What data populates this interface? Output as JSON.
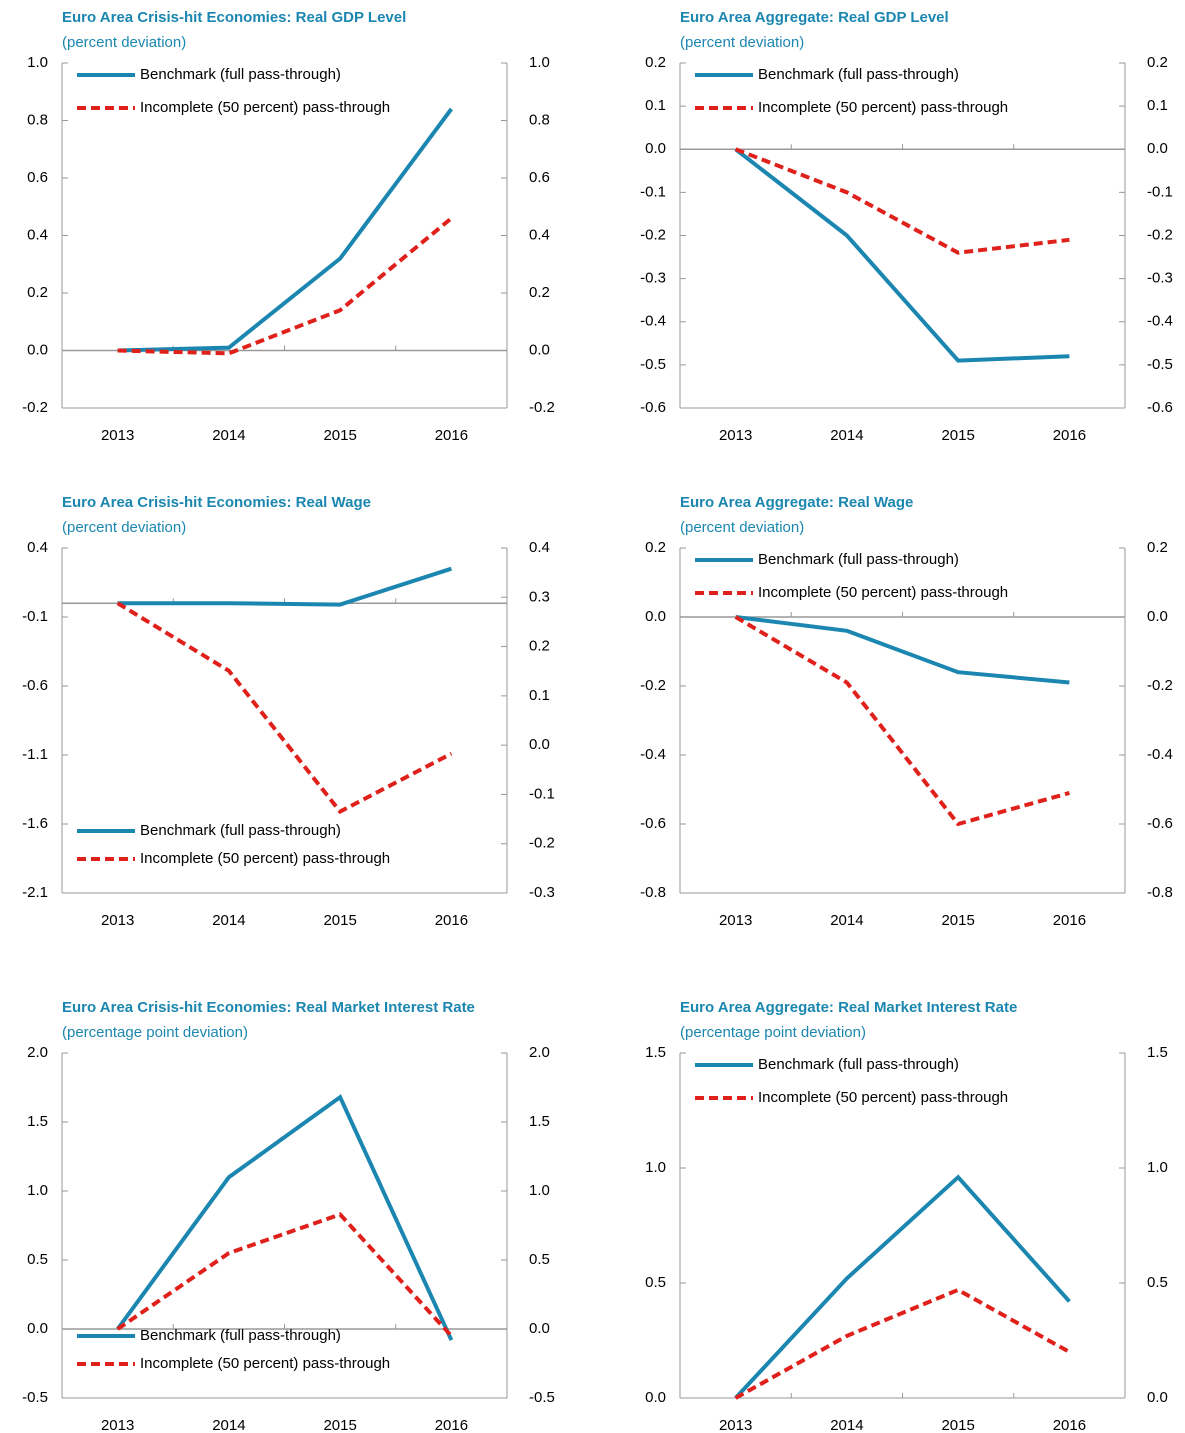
{
  "chart_data": [
    {
      "type": "line",
      "title": "Euro Area Crisis-hit Economies: Real GDP Level",
      "subtitle": "(percent deviation)",
      "categories": [
        "2013",
        "2014",
        "2015",
        "2016"
      ],
      "series": [
        {
          "name": "Benchmark (full pass-through)",
          "color": "#1b87b0",
          "values": [
            0,
            0.01,
            0.32,
            0.84
          ]
        },
        {
          "name": "Incomplete (50 percent) pass-through",
          "color": "#e0201b",
          "dashed": true,
          "values": [
            0,
            -0.01,
            0.14,
            0.46
          ]
        }
      ],
      "ylim": [
        -0.2,
        1.0
      ],
      "yticks": [
        -0.2,
        {
          "value": 0,
          "label": "0.0"
        },
        0.2,
        0.4,
        0.6,
        0.8,
        {
          "value": 1,
          "label": "1.0"
        }
      ],
      "y2lim": [
        -0.2,
        1.0
      ],
      "y2ticks": [
        -0.2,
        {
          "value": 0,
          "label": "0.0"
        },
        0.2,
        0.4,
        0.6,
        0.8,
        {
          "value": 1,
          "label": "1.0"
        }
      ],
      "legend": "upper left"
    },
    {
      "type": "line",
      "title": "Euro Area Aggregate: Real GDP Level",
      "subtitle": "(percent deviation)",
      "categories": [
        "2013",
        "2014",
        "2015",
        "2016"
      ],
      "series": [
        {
          "name": "Benchmark (full pass-through)",
          "color": "#1b87b0",
          "values": [
            0,
            -0.2,
            -0.49,
            -0.48
          ]
        },
        {
          "name": "Incomplete (50 percent) pass-through",
          "color": "#e0201b",
          "dashed": true,
          "values": [
            0,
            -0.1,
            -0.24,
            -0.21
          ]
        }
      ],
      "ylim": [
        -0.6,
        0.2
      ],
      "yticks": [
        -0.6,
        -0.5,
        -0.4,
        -0.3,
        -0.2,
        -0.1,
        {
          "value": 0,
          "label": "0.0"
        },
        0.1,
        0.2
      ],
      "y2lim": [
        -0.6,
        0.2
      ],
      "y2ticks": [
        -0.6,
        -0.5,
        -0.4,
        -0.3,
        -0.2,
        -0.1,
        {
          "value": 0,
          "label": "0.0"
        },
        0.1,
        0.2
      ],
      "legend": "upper left"
    },
    {
      "type": "line",
      "title": "Euro Area Crisis-hit Economies: Real Wage",
      "subtitle": "(percent deviation)",
      "categories": [
        "2013",
        "2014",
        "2015",
        "2016"
      ],
      "series": [
        {
          "name": "Benchmark (full pass-through)",
          "color": "#1b87b0",
          "values": [
            0,
            0,
            -0.01,
            0.25
          ]
        },
        {
          "name": "Incomplete (50 percent) pass-through",
          "color": "#e0201b",
          "dashed": true,
          "values": [
            0,
            -0.49,
            -1.51,
            -1.09
          ]
        }
      ],
      "ylim": [
        -2.1,
        0.4
      ],
      "yticks": [
        -2.1,
        -1.6,
        -1.1,
        -0.6,
        -0.1,
        0.4
      ],
      "y2lim": [
        -0.3,
        0.4
      ],
      "y2ticks": [
        -0.3,
        -0.2,
        -0.1,
        {
          "value": 0,
          "label": "0.0"
        },
        0.1,
        0.2,
        0.3,
        0.4
      ],
      "legend": "lower left"
    },
    {
      "type": "line",
      "title": "Euro Area Aggregate: Real Wage",
      "subtitle": "(percent deviation)",
      "categories": [
        "2013",
        "2014",
        "2015",
        "2016"
      ],
      "series": [
        {
          "name": "Benchmark (full pass-through)",
          "color": "#1b87b0",
          "values": [
            0,
            -0.04,
            -0.16,
            -0.19
          ]
        },
        {
          "name": "Incomplete (50 percent) pass-through",
          "color": "#e0201b",
          "dashed": true,
          "values": [
            0,
            -0.19,
            -0.6,
            -0.51
          ]
        }
      ],
      "ylim": [
        -0.8,
        0.2
      ],
      "yticks": [
        -0.8,
        -0.6,
        -0.4,
        -0.2,
        {
          "value": 0,
          "label": "0.0"
        },
        0.2
      ],
      "y2lim": [
        -0.8,
        0.2
      ],
      "y2ticks": [
        -0.8,
        -0.6,
        -0.4,
        -0.2,
        {
          "value": 0,
          "label": "0.0"
        },
        0.2
      ],
      "legend": "upper left"
    },
    {
      "type": "line",
      "title": "Euro Area Crisis-hit Economies: Real Market Interest Rate",
      "subtitle": "(percentage point deviation)",
      "categories": [
        "2013",
        "2014",
        "2015",
        "2016"
      ],
      "series": [
        {
          "name": "Benchmark (full pass-through)",
          "color": "#1b87b0",
          "values": [
            0,
            1.1,
            1.68,
            -0.08
          ]
        },
        {
          "name": "Incomplete (50 percent) pass-through",
          "color": "#e0201b",
          "dashed": true,
          "values": [
            0,
            0.55,
            0.83,
            -0.05
          ]
        }
      ],
      "ylim": [
        -0.5,
        2.0
      ],
      "yticks": [
        -0.5,
        {
          "value": 0,
          "label": "0.0"
        },
        0.5,
        {
          "value": 1,
          "label": "1.0"
        },
        1.5,
        {
          "value": 2,
          "label": "2.0"
        }
      ],
      "y2lim": [
        -0.5,
        2.0
      ],
      "y2ticks": [
        -0.5,
        {
          "value": 0,
          "label": "0.0"
        },
        0.5,
        {
          "value": 1,
          "label": "1.0"
        },
        1.5,
        {
          "value": 2,
          "label": "2.0"
        }
      ],
      "legend": "lower left"
    },
    {
      "type": "line",
      "title": "Euro Area Aggregate: Real Market Interest Rate",
      "subtitle": "(percentage point deviation)",
      "categories": [
        "2013",
        "2014",
        "2015",
        "2016"
      ],
      "series": [
        {
          "name": "Benchmark (full pass-through)",
          "color": "#1b87b0",
          "values": [
            0,
            0.52,
            0.96,
            0.42
          ]
        },
        {
          "name": "Incomplete (50 percent) pass-through",
          "color": "#e0201b",
          "dashed": true,
          "values": [
            0,
            0.27,
            0.47,
            0.2
          ]
        }
      ],
      "ylim": [
        0,
        1.5
      ],
      "yticks": [
        {
          "value": 0,
          "label": "0.0"
        },
        0.5,
        {
          "value": 1,
          "label": "1.0"
        },
        1.5
      ],
      "y2lim": [
        0,
        1.5
      ],
      "y2ticks": [
        {
          "value": 0,
          "label": "0.0"
        },
        0.5,
        {
          "value": 1,
          "label": "1.0"
        },
        1.5
      ],
      "legend": "upper left"
    }
  ]
}
